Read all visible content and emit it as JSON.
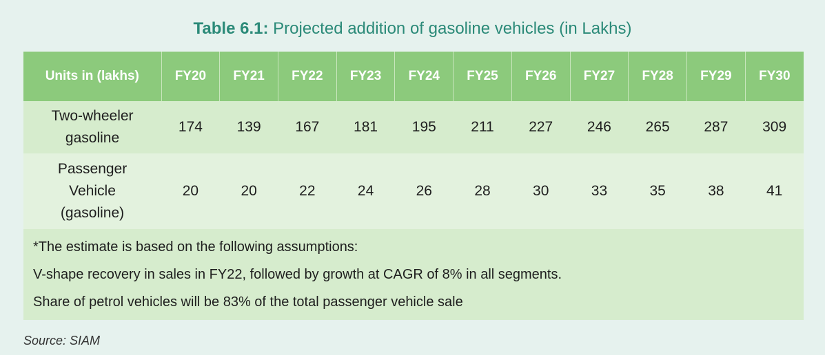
{
  "title": {
    "bold": "Table 6.1:",
    "text": " Projected addition of gasoline vehicles (in Lakhs)"
  },
  "table": {
    "header": [
      "Units in (lakhs)",
      "FY20",
      "FY21",
      "FY22",
      "FY23",
      "FY24",
      "FY25",
      "FY26",
      "FY27",
      "FY28",
      "FY29",
      "FY30"
    ],
    "rows": [
      {
        "label_lines": [
          "Two-wheeler",
          "gasoline"
        ],
        "values": [
          "174",
          "139",
          "167",
          "181",
          "195",
          "211",
          "227",
          "246",
          "265",
          "287",
          "309"
        ]
      },
      {
        "label_lines": [
          "Passenger",
          "Vehicle",
          "(gasoline)"
        ],
        "values": [
          "20",
          "20",
          "22",
          "24",
          "26",
          "28",
          "30",
          "33",
          "35",
          "38",
          "41"
        ]
      }
    ],
    "notes": [
      "*The estimate is based on the following assumptions:",
      "V-shape recovery in sales in FY22, followed by growth at CAGR of 8% in all segments.",
      "Share of petrol vehicles will be 83% of the total passenger vehicle sale"
    ]
  },
  "source": "Source: SIAM"
}
